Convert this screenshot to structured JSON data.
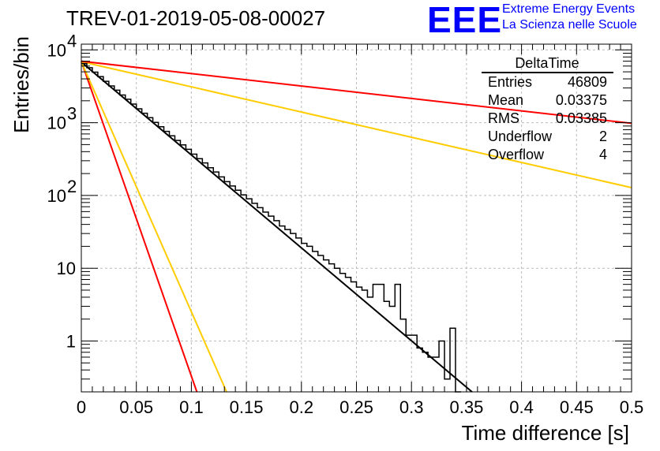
{
  "header": {
    "title": "TREV-01-2019-05-08-00027",
    "logo_text": "EEE",
    "logo_line1": "Extreme Energy Events",
    "logo_line2": "La Scienza nelle Scuole",
    "logo_color": "#0000ff"
  },
  "stats_box": {
    "name": "DeltaTime",
    "rows": [
      {
        "label": "Entries",
        "value": "46809"
      },
      {
        "label": "Mean",
        "value": "0.03375"
      },
      {
        "label": "RMS",
        "value": "0.03385"
      },
      {
        "label": "Underflow",
        "value": "2"
      },
      {
        "label": "Overflow",
        "value": "4"
      }
    ]
  },
  "chart_data": {
    "type": "line",
    "xlabel": "Time difference [s]",
    "ylabel": "Entries/bin",
    "xlim": [
      0,
      0.5
    ],
    "ylim": [
      0.2,
      12000
    ],
    "y_scale": "log",
    "grid": true,
    "x_ticks": [
      "0",
      "0.05",
      "0.1",
      "0.15",
      "0.2",
      "0.25",
      "0.3",
      "0.35",
      "0.4",
      "0.45",
      "0.5"
    ],
    "y_ticks": [
      {
        "value": 1,
        "label": "1"
      },
      {
        "value": 10,
        "label": "10"
      },
      {
        "value": 100,
        "label": "10",
        "exp": "2"
      },
      {
        "value": 1000,
        "label": "10",
        "exp": "3"
      },
      {
        "value": 10000,
        "label": "10",
        "exp": "4"
      }
    ],
    "histogram": {
      "color": "#000000",
      "bin_width": 0.005,
      "x_start": 0,
      "counts": [
        6500,
        5700,
        4950,
        4300,
        3700,
        3200,
        2800,
        2400,
        2100,
        1800,
        1550,
        1350,
        1170,
        1010,
        880,
        760,
        660,
        570,
        495,
        430,
        370,
        320,
        280,
        240,
        210,
        180,
        155,
        135,
        118,
        102,
        90,
        78,
        68,
        59,
        52,
        45,
        38,
        34,
        30,
        26,
        22,
        20,
        17,
        15,
        13,
        11.5,
        10,
        8.5,
        7.5,
        6.5,
        5.5,
        5,
        4,
        6,
        6,
        3.5,
        3,
        6,
        2,
        1.2,
        1.2,
        0.8,
        0.7,
        0.6,
        0.6,
        1,
        0.3,
        1.5,
        0.2
      ]
    },
    "series": [
      {
        "color": "#000000",
        "x": [
          0,
          0.355
        ],
        "y": [
          6800,
          0.2
        ]
      },
      {
        "color": "#ff0000",
        "x": [
          0,
          0.105
        ],
        "y": [
          7000,
          0.2
        ]
      },
      {
        "color": "#ffcc00",
        "x": [
          0,
          0.132
        ],
        "y": [
          6900,
          0.2
        ]
      },
      {
        "color": "#ffcc00",
        "x": [
          0,
          0.5
        ],
        "y": [
          6900,
          128
        ]
      },
      {
        "color": "#ff0000",
        "x": [
          0,
          0.5
        ],
        "y": [
          7000,
          980
        ]
      }
    ]
  }
}
